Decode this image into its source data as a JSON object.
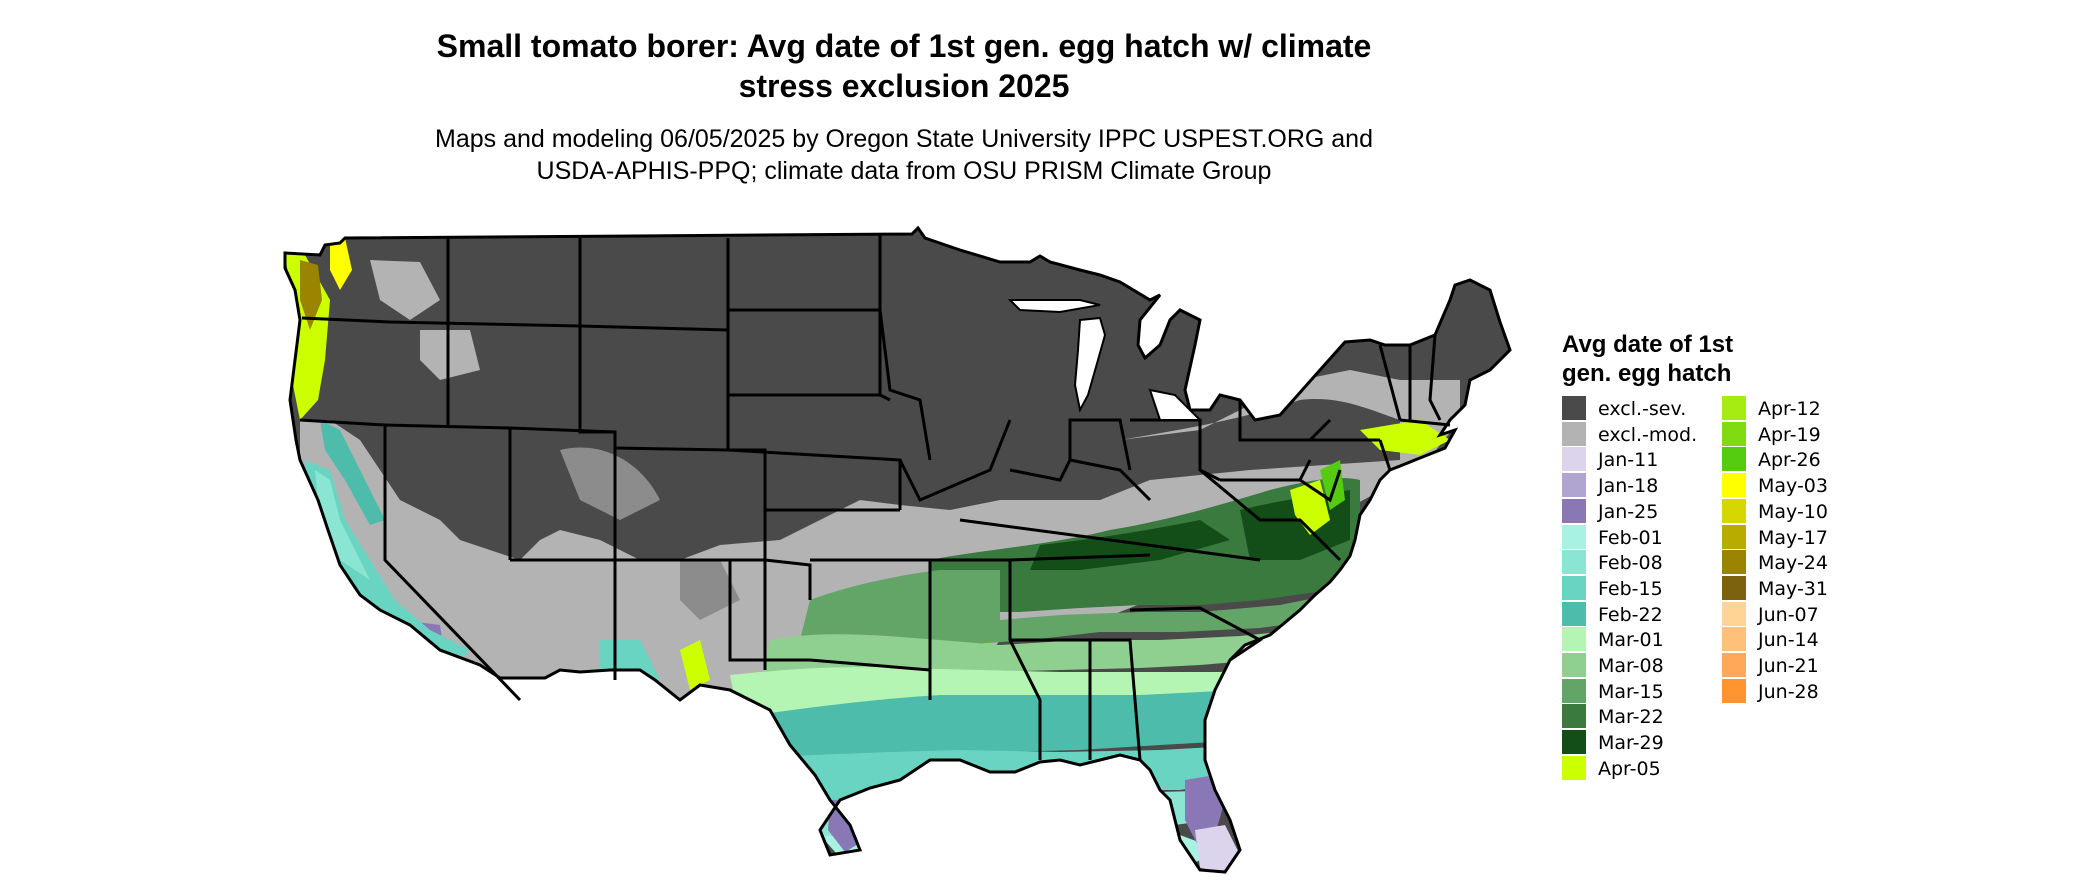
{
  "title": {
    "line1": "Small tomato borer: Avg date of 1st gen. egg hatch w/ climate",
    "line2": "stress exclusion 2025"
  },
  "subtitle": {
    "line1": "Maps and modeling 06/05/2025 by Oregon State University IPPC USPEST.ORG and",
    "line2": "USDA-APHIS-PPQ; climate data from OSU PRISM Climate Group"
  },
  "legend": {
    "title_line1": "Avg date of 1st",
    "title_line2": "gen. egg hatch",
    "items": [
      {
        "label": "excl.-sev.",
        "color": "#4a4a4a"
      },
      {
        "label": "excl.-mod.",
        "color": "#b3b3b3"
      },
      {
        "label": "Jan-11",
        "color": "#dcd4ec"
      },
      {
        "label": "Jan-18",
        "color": "#b0a4d0"
      },
      {
        "label": "Jan-25",
        "color": "#8a78b6"
      },
      {
        "label": "Feb-01",
        "color": "#a8f2e2"
      },
      {
        "label": "Feb-08",
        "color": "#8ae6d2"
      },
      {
        "label": "Feb-15",
        "color": "#6ad4c2"
      },
      {
        "label": "Feb-22",
        "color": "#4dbcaa"
      },
      {
        "label": "Mar-01",
        "color": "#b4f5b4"
      },
      {
        "label": "Mar-08",
        "color": "#8fcf8f"
      },
      {
        "label": "Mar-15",
        "color": "#62a566"
      },
      {
        "label": "Mar-22",
        "color": "#3a7a3e"
      },
      {
        "label": "Mar-29",
        "color": "#134e18"
      },
      {
        "label": "Apr-05",
        "color": "#ccff00"
      },
      {
        "label": "Apr-12",
        "color": "#a6ec12"
      },
      {
        "label": "Apr-19",
        "color": "#7fdc10"
      },
      {
        "label": "Apr-26",
        "color": "#55cc10"
      },
      {
        "label": "May-03",
        "color": "#ffff00"
      },
      {
        "label": "May-10",
        "color": "#d6d600"
      },
      {
        "label": "May-17",
        "color": "#b8ac00"
      },
      {
        "label": "May-24",
        "color": "#9a8400"
      },
      {
        "label": "May-31",
        "color": "#7c620e"
      },
      {
        "label": "Jun-07",
        "color": "#ffd494"
      },
      {
        "label": "Jun-14",
        "color": "#ffc07a"
      },
      {
        "label": "Jun-21",
        "color": "#ffa85a"
      },
      {
        "label": "Jun-28",
        "color": "#ff9430"
      }
    ]
  }
}
